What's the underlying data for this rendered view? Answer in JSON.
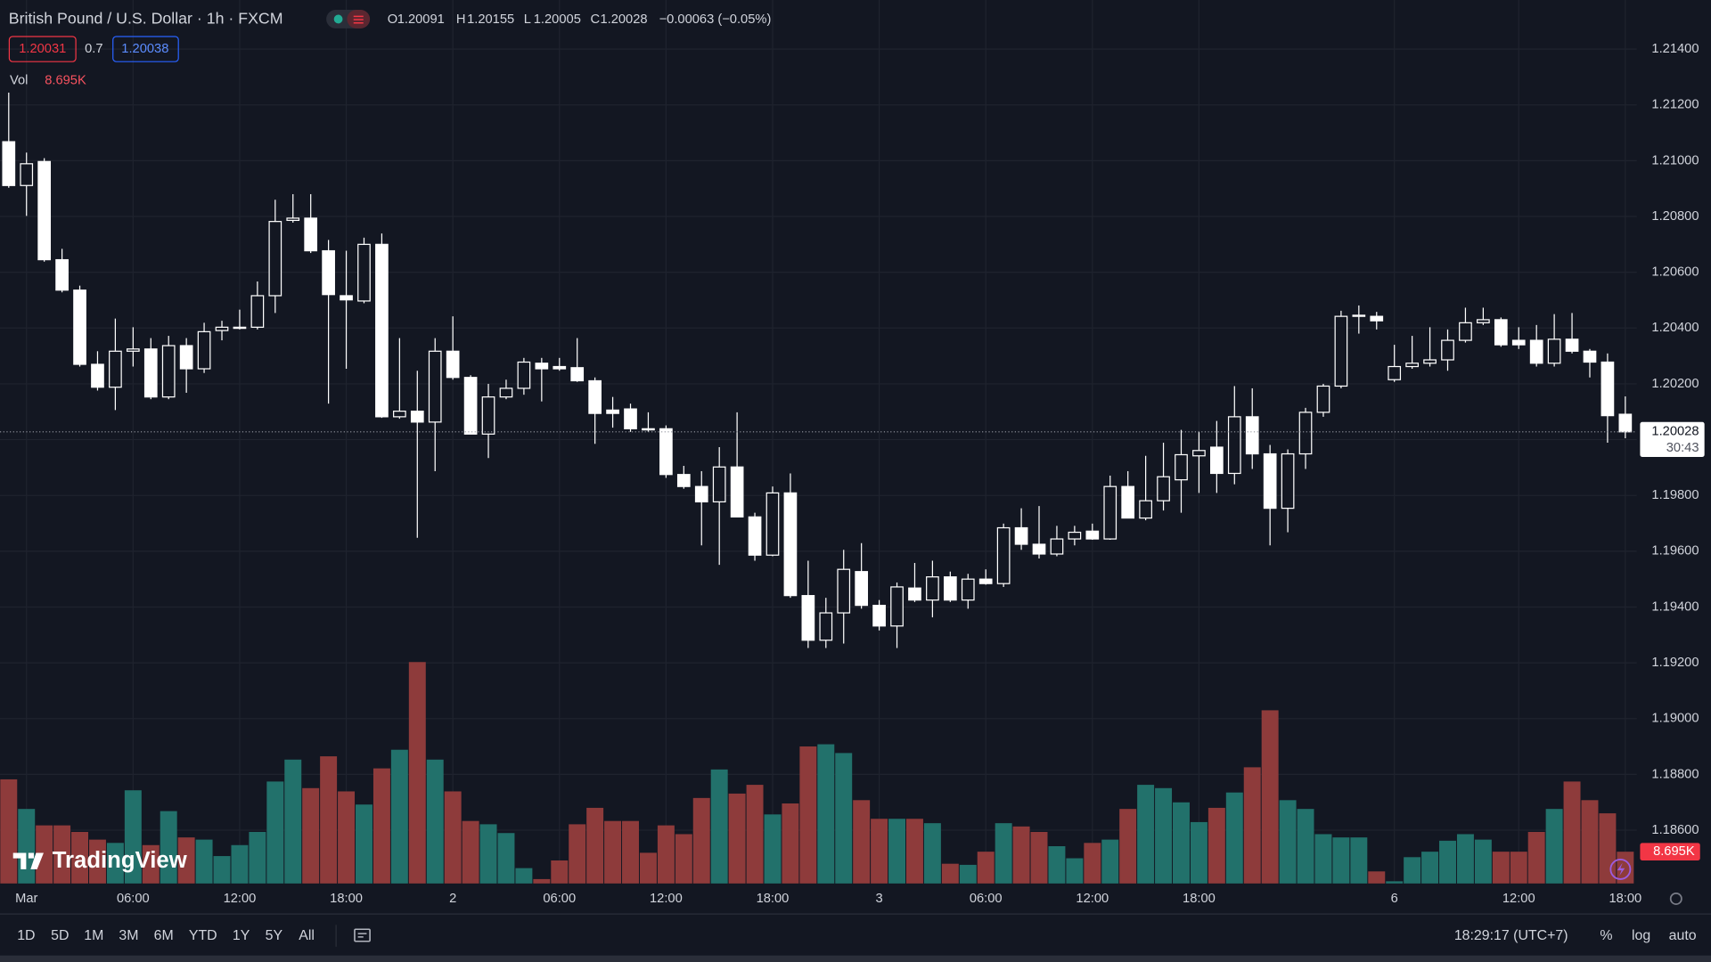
{
  "chart_data": {
    "type": "candlestick",
    "title": "British Pound / U.S. Dollar · 1h · FXCM",
    "categories": [
      null,
      "Mar",
      null,
      null,
      null,
      null,
      null,
      "06:00",
      null,
      null,
      null,
      null,
      null,
      "12:00",
      null,
      null,
      null,
      null,
      null,
      "18:00",
      null,
      null,
      null,
      null,
      null,
      "2",
      null,
      null,
      null,
      null,
      null,
      "06:00",
      null,
      null,
      null,
      null,
      null,
      "12:00",
      null,
      null,
      null,
      null,
      null,
      "18:00",
      null,
      null,
      null,
      null,
      null,
      "3",
      null,
      null,
      null,
      null,
      null,
      "06:00",
      null,
      null,
      null,
      null,
      null,
      "12:00",
      null,
      null,
      null,
      null,
      null,
      "18:00",
      null,
      null,
      null,
      null,
      null,
      null,
      null,
      null,
      null,
      null,
      "6",
      null,
      null,
      null,
      null,
      null,
      null,
      "12:00",
      null,
      null,
      null,
      null,
      null,
      "18:00"
    ],
    "open": [
      1.21068,
      1.20911,
      1.20997,
      1.20645,
      1.20536,
      1.2027,
      1.20188,
      1.20317,
      1.20325,
      1.20153,
      1.20337,
      1.20254,
      1.20391,
      1.20399,
      1.20403,
      1.20516,
      1.20786,
      1.20794,
      1.20677,
      1.20516,
      1.20497,
      1.207,
      1.20082,
      1.20102,
      1.20063,
      1.20317,
      1.20223,
      1.2002,
      1.20153,
      1.20184,
      1.20274,
      1.20262,
      1.20258,
      1.20211,
      1.20106,
      1.2011,
      1.20039,
      1.20039,
      1.19875,
      1.19832,
      1.19777,
      1.19902,
      1.19723,
      1.19586,
      1.19809,
      1.19441,
      1.19281,
      1.19379,
      1.19527,
      1.19406,
      1.19332,
      1.19468,
      1.19425,
      1.19508,
      1.19425,
      1.195,
      1.19484,
      1.19684,
      1.19625,
      1.1959,
      1.19644,
      1.19672,
      1.19644,
      1.19832,
      1.19719,
      1.19781,
      1.19856,
      1.19942,
      1.19973,
      1.19879,
      1.20082,
      1.19949,
      1.19754,
      1.19949,
      1.20098,
      1.20192,
      1.20442,
      1.20442,
      1.20215,
      1.20262,
      1.20274,
      1.20286,
      1.20356,
      1.20419,
      1.2043,
      1.20356,
      1.20356,
      1.20274,
      1.2036,
      1.20317,
      1.20278,
      1.20091
    ],
    "high": [
      1.21244,
      1.21029,
      1.21009,
      1.20684,
      1.20552,
      1.20317,
      1.20434,
      1.20403,
      1.20364,
      1.20372,
      1.20364,
      1.20419,
      1.20426,
      1.20466,
      1.20567,
      1.2086,
      1.2088,
      1.2088,
      1.20716,
      1.20677,
      1.20724,
      1.20739,
      1.20364,
      1.20247,
      1.20364,
      1.20442,
      1.20231,
      1.202,
      1.20215,
      1.20293,
      1.20293,
      1.20293,
      1.20364,
      1.20223,
      1.20153,
      1.20129,
      1.20098,
      1.20051,
      1.19906,
      1.19887,
      1.19973,
      1.20098,
      1.19738,
      1.19832,
      1.19879,
      1.19566,
      1.19433,
      1.19605,
      1.19629,
      1.19425,
      1.19488,
      1.19558,
      1.19566,
      1.19527,
      1.19519,
      1.19535,
      1.19699,
      1.19754,
      1.19762,
      1.19691,
      1.19691,
      1.19699,
      1.19871,
      1.19887,
      1.19942,
      1.19989,
      1.20035,
      1.20028,
      1.20067,
      1.20192,
      1.20184,
      1.19981,
      1.19965,
      1.20114,
      1.202,
      1.20462,
      1.20481,
      1.20458,
      1.2034,
      1.20372,
      1.20403,
      1.20395,
      1.20473,
      1.20473,
      1.20438,
      1.20403,
      1.20411,
      1.2045,
      1.20454,
      1.20325,
      1.20309,
      1.20155
    ],
    "low": [
      1.20903,
      1.20802,
      1.20638,
      1.20528,
      1.20262,
      1.20176,
      1.20106,
      1.20262,
      1.20145,
      1.20145,
      1.20168,
      1.20239,
      1.20356,
      1.20395,
      1.20395,
      1.20454,
      1.20778,
      1.20669,
      1.20129,
      1.20254,
      1.20489,
      1.20078,
      1.20075,
      1.19648,
      1.19887,
      1.20215,
      1.2002,
      1.19934,
      1.20145,
      1.20161,
      1.20137,
      1.20247,
      1.20207,
      1.19985,
      1.20043,
      1.20028,
      1.20028,
      1.19863,
      1.19824,
      1.19621,
      1.19551,
      1.19723,
      1.19566,
      1.19582,
      1.19433,
      1.19253,
      1.19253,
      1.19269,
      1.19394,
      1.19316,
      1.19253,
      1.19418,
      1.19363,
      1.19418,
      1.19394,
      1.1948,
      1.19472,
      1.19605,
      1.19574,
      1.19582,
      1.19621,
      1.19641,
      1.19641,
      1.19719,
      1.19711,
      1.19746,
      1.19738,
      1.19809,
      1.19809,
      1.1984,
      1.19895,
      1.19621,
      1.19668,
      1.19895,
      1.20082,
      1.20184,
      1.2038,
      1.20395,
      1.20207,
      1.20254,
      1.20262,
      1.20247,
      1.20348,
      1.20411,
      1.20333,
      1.20325,
      1.20262,
      1.20262,
      1.20309,
      1.20223,
      1.19989,
      1.20005
    ],
    "close": [
      1.20911,
      1.20989,
      1.20645,
      1.20536,
      1.2027,
      1.20188,
      1.20317,
      1.20325,
      1.20153,
      1.20337,
      1.20254,
      1.20387,
      1.20403,
      1.20403,
      1.20516,
      1.20782,
      1.20794,
      1.20677,
      1.2052,
      1.20501,
      1.207,
      1.20082,
      1.20102,
      1.20063,
      1.20317,
      1.20223,
      1.2002,
      1.20153,
      1.20184,
      1.20278,
      1.20254,
      1.20254,
      1.20211,
      1.20094,
      1.20094,
      1.20039,
      1.20035,
      1.19875,
      1.19832,
      1.19777,
      1.19902,
      1.19723,
      1.19586,
      1.19809,
      1.19441,
      1.19281,
      1.19379,
      1.19535,
      1.19406,
      1.19332,
      1.19472,
      1.19425,
      1.19508,
      1.19425,
      1.195,
      1.19484,
      1.19684,
      1.19625,
      1.1959,
      1.19644,
      1.19668,
      1.19644,
      1.19832,
      1.19719,
      1.19781,
      1.19867,
      1.19946,
      1.19961,
      1.19879,
      1.20082,
      1.19949,
      1.19754,
      1.19949,
      1.20098,
      1.20192,
      1.20442,
      1.20446,
      1.20426,
      1.20262,
      1.20274,
      1.20286,
      1.20356,
      1.20419,
      1.2043,
      1.2034,
      1.2034,
      1.20274,
      1.2036,
      1.20317,
      1.20278,
      1.20086,
      1.20028
    ],
    "candle_color": "#ffffff",
    "volume": {
      "name": "Vol",
      "values": [
        28500,
        20400,
        15900,
        15900,
        14100,
        12000,
        11100,
        25500,
        10500,
        19800,
        12600,
        12000,
        7500,
        10500,
        14100,
        27900,
        33900,
        26100,
        34800,
        25200,
        21600,
        31500,
        36600,
        60600,
        33900,
        25200,
        17100,
        16200,
        13800,
        4200,
        1200,
        6300,
        16200,
        20700,
        17100,
        17100,
        8400,
        15900,
        13500,
        23400,
        31200,
        24600,
        27000,
        18900,
        21900,
        37500,
        38100,
        35700,
        22800,
        17700,
        17700,
        17700,
        16500,
        5400,
        5100,
        8700,
        16500,
        15600,
        14100,
        10200,
        6900,
        11100,
        12000,
        20400,
        27000,
        26100,
        22200,
        16800,
        20700,
        24900,
        31800,
        47400,
        22800,
        20400,
        13500,
        12600,
        12600,
        3300,
        600,
        7200,
        8700,
        11700,
        13500,
        12000,
        8700,
        8700,
        14100,
        20400,
        27900,
        22800,
        19200,
        8695
      ],
      "value_labels": [
        null,
        null,
        null,
        null,
        null,
        null,
        null,
        null,
        null,
        null,
        null,
        null,
        null,
        null,
        null,
        null,
        null,
        null,
        null,
        null,
        null,
        null,
        null,
        null,
        null,
        null,
        null,
        null,
        null,
        null,
        null,
        null,
        null,
        null,
        null,
        null,
        null,
        null,
        null,
        null,
        null,
        null,
        null,
        null,
        null,
        null,
        null,
        null,
        null,
        null,
        null,
        null,
        null,
        null,
        null,
        null,
        null,
        null,
        null,
        null,
        null,
        null,
        null,
        null,
        null,
        null,
        null,
        null,
        null,
        null,
        null,
        null,
        null,
        null,
        null,
        null,
        null,
        null,
        null,
        null,
        null,
        null,
        null,
        null,
        null,
        null,
        null,
        null,
        null,
        null,
        null,
        "8.695K"
      ],
      "up_color": "#22716b",
      "down_color": "#8e3b3b"
    },
    "ylim": [
      1.18409,
      1.21576
    ],
    "yticks": [
      {
        "value": 1.214,
        "label": "1.21400"
      },
      {
        "value": 1.212,
        "label": "1.21200"
      },
      {
        "value": 1.21,
        "label": "1.21000"
      },
      {
        "value": 1.208,
        "label": "1.20800"
      },
      {
        "value": 1.206,
        "label": "1.20600"
      },
      {
        "value": 1.204,
        "label": "1.20400"
      },
      {
        "value": 1.202,
        "label": "1.20200"
      },
      {
        "value": 1.2,
        "label": "1.20000"
      },
      {
        "value": 1.198,
        "label": "1.19800"
      },
      {
        "value": 1.196,
        "label": "1.19600"
      },
      {
        "value": 1.194,
        "label": "1.19400"
      },
      {
        "value": 1.192,
        "label": "1.19200"
      },
      {
        "value": 1.19,
        "label": "1.19000"
      },
      {
        "value": 1.188,
        "label": "1.18800"
      },
      {
        "value": 1.186,
        "label": "1.18600"
      }
    ],
    "grid": true
  },
  "header": {
    "ohlc_letters": [
      "O",
      "H",
      "L",
      "C"
    ],
    "change": "−0.00063 (−0.05%)",
    "bid": "1.20031",
    "spread": "0.7",
    "ask": "1.20038"
  },
  "price_badge": {
    "countdown": "30:43"
  },
  "logo": "TradingView",
  "toolbar": {
    "ranges": [
      "1D",
      "5D",
      "1M",
      "3M",
      "6M",
      "YTD",
      "1Y",
      "5Y",
      "All"
    ],
    "clock": "18:29:17 (UTC+7)",
    "options": [
      "%",
      "log",
      "auto"
    ]
  }
}
